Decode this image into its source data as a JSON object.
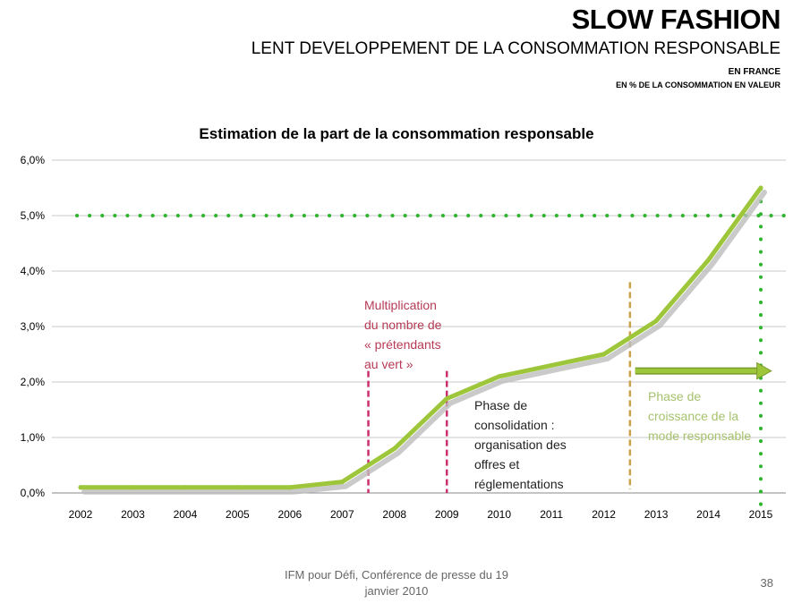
{
  "header": {
    "title": "SLOW FASHION",
    "subtitle": "LENT DEVELOPPEMENT DE LA CONSOMMATION RESPONSABLE",
    "scope": "EN FRANCE",
    "unit": "EN % DE LA CONSOMMATION EN VALEUR"
  },
  "annotations": {
    "multiplication": [
      "Multiplication",
      "du nombre de",
      "« prétendants",
      "au vert »"
    ],
    "consolidation": [
      "Phase de",
      "consolidation :",
      "organisation des",
      "offres et",
      "réglementations"
    ],
    "croissance": [
      "Phase de",
      "croissance de la",
      "mode responsable"
    ]
  },
  "footer": {
    "text_line1": "IFM pour Défi, Conférence de presse du 19",
    "text_line2": "janvier 2010",
    "page_number": "38"
  },
  "colors": {
    "line": "#9dc63b",
    "target_dots": "#2db52d",
    "multiplication_marker": "#cc2f6e",
    "croissance_marker": "#c9a24a",
    "arrow": "#9dc63b"
  },
  "chart_data": {
    "type": "line",
    "title": "Estimation de la part de la consommation responsable",
    "xlabel": "",
    "ylabel": "",
    "categories": [
      "2002",
      "2003",
      "2004",
      "2005",
      "2006",
      "2007",
      "2008",
      "2009",
      "2010",
      "2011",
      "2012",
      "2013",
      "2014",
      "2015"
    ],
    "yticks": [
      "0,0%",
      "1,0%",
      "2,0%",
      "3,0%",
      "4,0%",
      "5,0%",
      "6,0%"
    ],
    "ylim": [
      0,
      6
    ],
    "grid": true,
    "series": [
      {
        "values": [
          0.1,
          0.1,
          0.1,
          0.1,
          0.1,
          0.2,
          0.8,
          1.7,
          2.1,
          2.3,
          2.5,
          3.1,
          4.2,
          5.5
        ]
      }
    ],
    "reference_line_y": 5.0,
    "vertical_markers": [
      {
        "x": 2007.5,
        "style": "dashed",
        "color_key": "multiplication_marker"
      },
      {
        "x": 2009.0,
        "style": "dashed",
        "color_key": "multiplication_marker"
      },
      {
        "x": 2012.5,
        "style": "dashed",
        "color_key": "croissance_marker"
      },
      {
        "x": 2015.0,
        "style": "dotted",
        "color_key": "target_dots"
      }
    ],
    "arrow": {
      "from_x": 2012.6,
      "to_x": 2015.2,
      "y": 2.2
    }
  }
}
